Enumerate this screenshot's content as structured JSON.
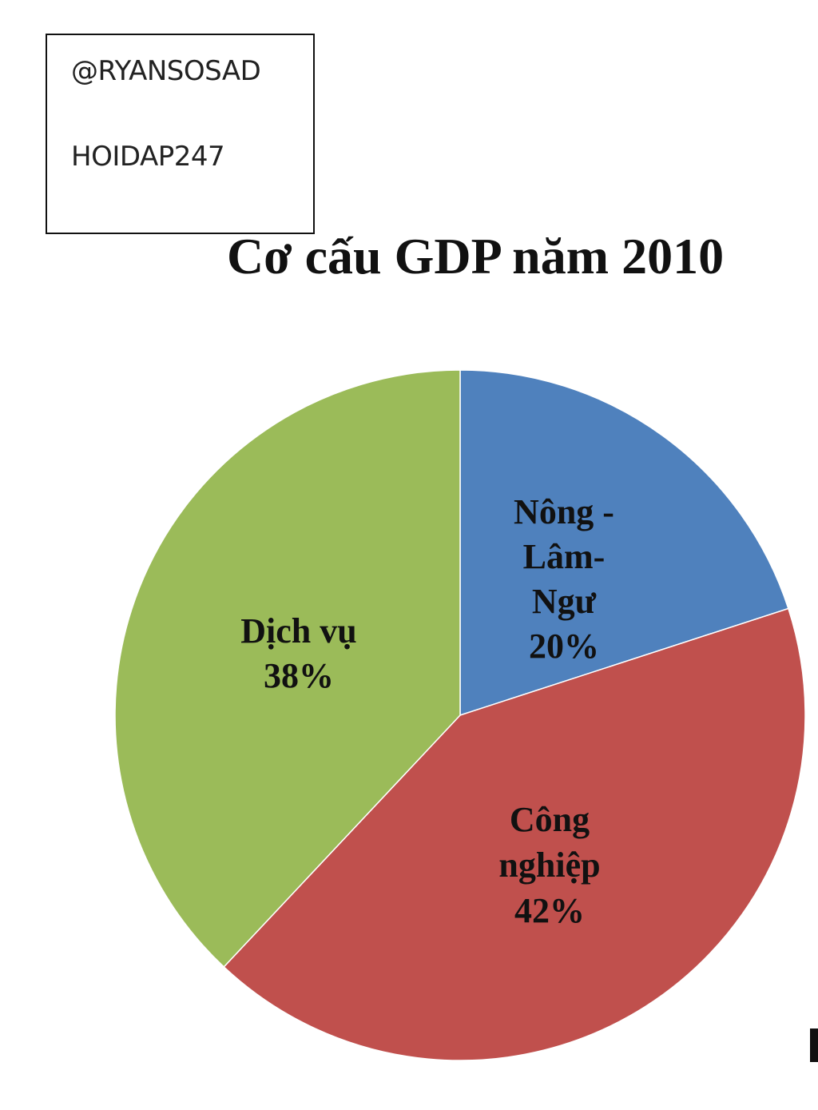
{
  "watermark": {
    "line1": "@RYANSOSAD",
    "line2": "HOIDAP247"
  },
  "chart_data": {
    "type": "pie",
    "title": "Cơ cấu GDP năm 2010",
    "start_angle_deg": 0,
    "direction": "clockwise",
    "slices": [
      {
        "label_lines": [
          "Nông -",
          "Lâm-",
          "Ngư"
        ],
        "value": 20,
        "value_label": "20%",
        "color": "#4f81bd"
      },
      {
        "label_lines": [
          "Công",
          "nghiệp"
        ],
        "value": 42,
        "value_label": "42%",
        "color": "#c0504d"
      },
      {
        "label_lines": [
          "Dịch vụ"
        ],
        "value": 38,
        "value_label": "38%",
        "color": "#9bbb59"
      }
    ]
  }
}
